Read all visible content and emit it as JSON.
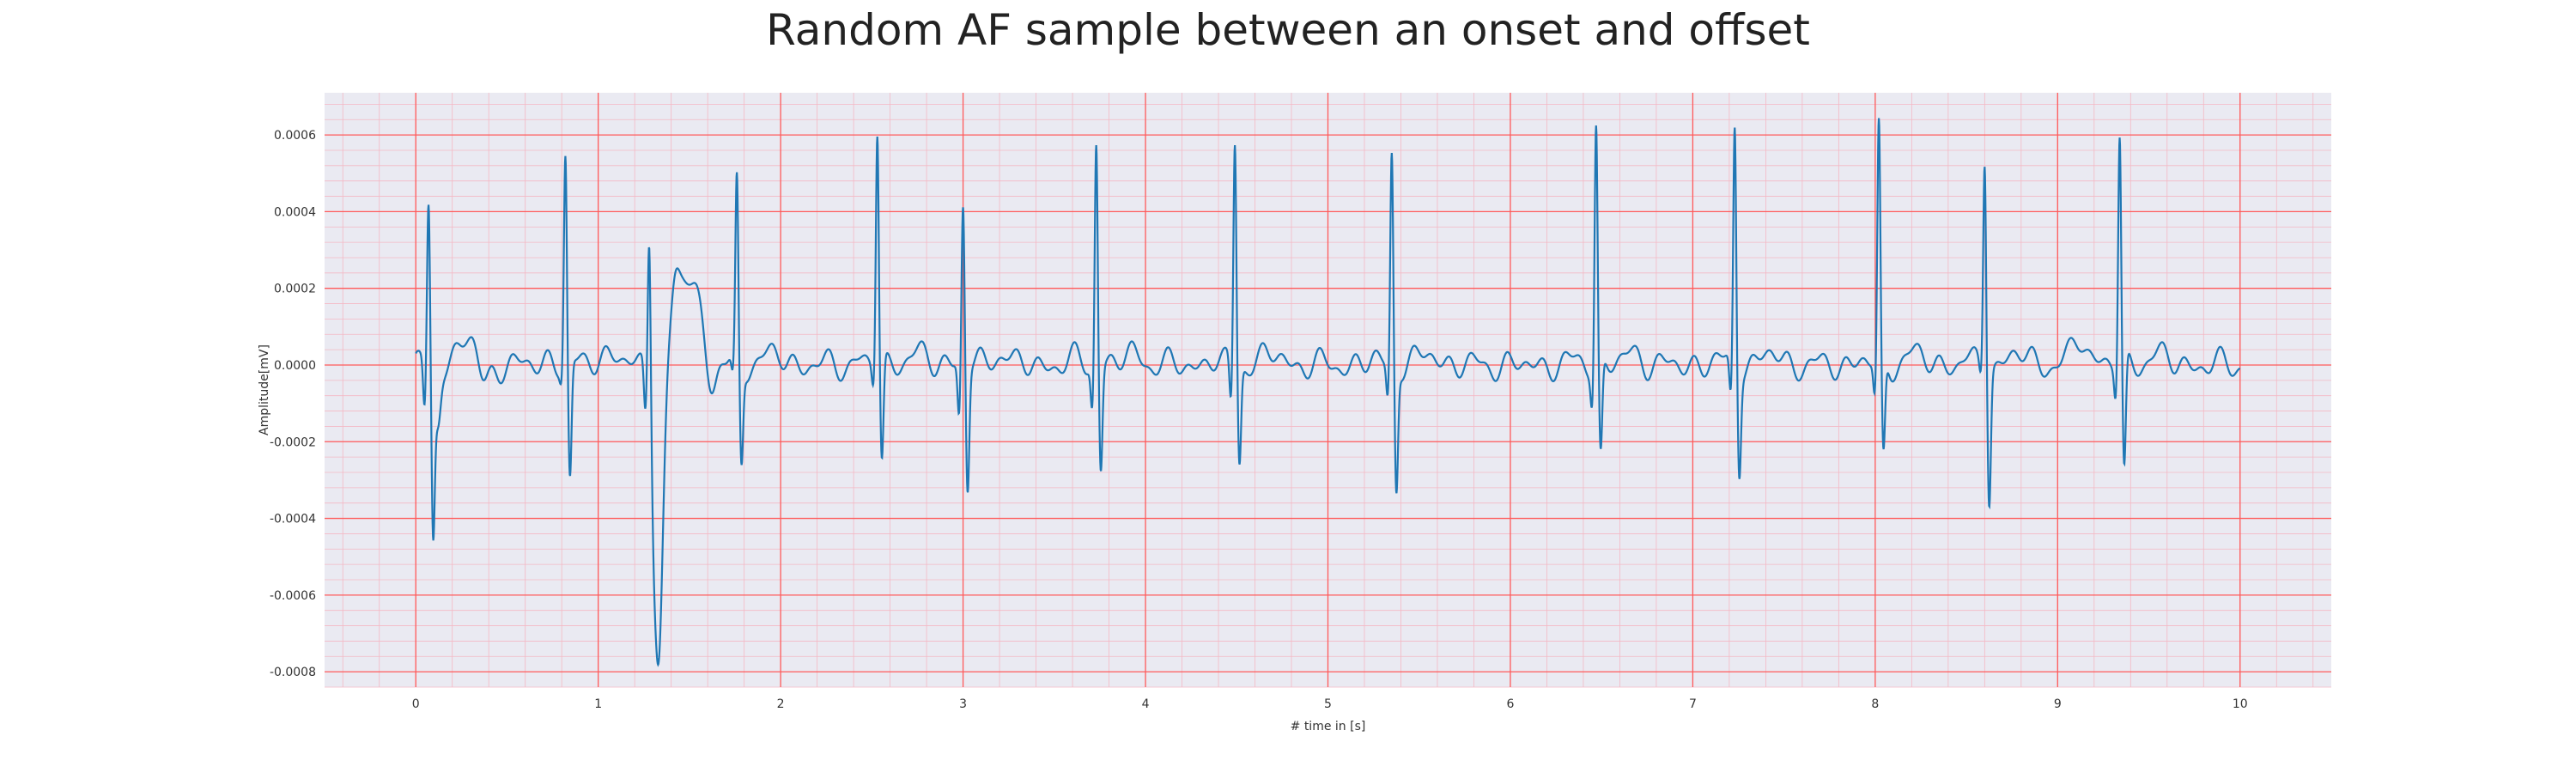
{
  "chart_data": {
    "type": "line",
    "title": "Random AF sample between an onset and offset",
    "xlabel": "# time in [s]",
    "ylabel": "Amplitude[mV]",
    "xlim": [
      -0.5,
      10.5
    ],
    "ylim": [
      -0.00084,
      0.00071
    ],
    "xticks": [
      0,
      1,
      2,
      3,
      4,
      5,
      6,
      7,
      8,
      9,
      10
    ],
    "xtick_labels": [
      "0",
      "1",
      "2",
      "3",
      "4",
      "5",
      "6",
      "7",
      "8",
      "9",
      "10"
    ],
    "yticks": [
      -0.0008,
      -0.0006,
      -0.0004,
      -0.0002,
      0,
      0.0002,
      0.0004,
      0.0006
    ],
    "ytick_labels": [
      "-0.0008",
      "-0.0006",
      "-0.0004",
      "-0.0002",
      "0.0000",
      "0.0002",
      "0.0004",
      "0.0006"
    ],
    "grid": true,
    "colors": {
      "background": "#eaeaf2",
      "major_grid": "#ff5a5a",
      "minor_grid": "#f4b8c4",
      "line": "#1f77b4"
    },
    "series": [
      {
        "beats": [
          {
            "t": 0.07,
            "r": 0.00042,
            "q": -0.00013,
            "s": -0.00043
          },
          {
            "t": 0.82,
            "r": 0.00055,
            "q": -3e-05,
            "s": -0.00031
          },
          {
            "t": 1.28,
            "r": 0.00044,
            "q": -0.00012,
            "s": -5e-05
          },
          {
            "t": 1.76,
            "r": 0.00048,
            "q": -5e-05,
            "s": -0.00025
          },
          {
            "t": 2.53,
            "r": 0.00062,
            "q": -5e-05,
            "s": -0.00026
          },
          {
            "t": 3.0,
            "r": 0.00042,
            "q": -0.00014,
            "s": -0.00032
          },
          {
            "t": 3.73,
            "r": 0.00059,
            "q": -0.00011,
            "s": -0.00027
          },
          {
            "t": 4.49,
            "r": 0.00059,
            "q": -0.00011,
            "s": -0.00025
          },
          {
            "t": 5.35,
            "r": 0.00056,
            "q": -9e-05,
            "s": -0.00032
          },
          {
            "t": 6.47,
            "r": 0.00063,
            "q": -9e-05,
            "s": -0.00025
          },
          {
            "t": 7.23,
            "r": 0.00063,
            "q": -0.0001,
            "s": -0.00026
          },
          {
            "t": 8.02,
            "r": 0.00062,
            "q": -9e-05,
            "s": -0.00025
          },
          {
            "t": 8.6,
            "r": 0.00056,
            "q": -3e-05,
            "s": -0.00034
          },
          {
            "t": 9.34,
            "r": 0.0006,
            "q": -8e-05,
            "s": -0.0003
          }
        ],
        "special_waves": [
          {
            "t": 1.33,
            "amp": -0.00078,
            "width": 0.025
          },
          {
            "t": 1.5,
            "amp": 0.00022,
            "width": 0.07
          },
          {
            "t": 1.42,
            "amp": 8e-05,
            "width": 0.02
          },
          {
            "t": 1.62,
            "amp": -0.00012,
            "width": 0.03
          },
          {
            "t": 0.12,
            "amp": -0.00015,
            "width": 0.015
          },
          {
            "t": 0.3,
            "amp": 5e-05,
            "width": 0.05
          },
          {
            "t": 0.37,
            "amp": -7e-05,
            "width": 0.03
          },
          {
            "t": 9.12,
            "amp": 7e-05,
            "width": 0.04
          }
        ],
        "t_start": 0,
        "t_end": 10
      }
    ]
  }
}
